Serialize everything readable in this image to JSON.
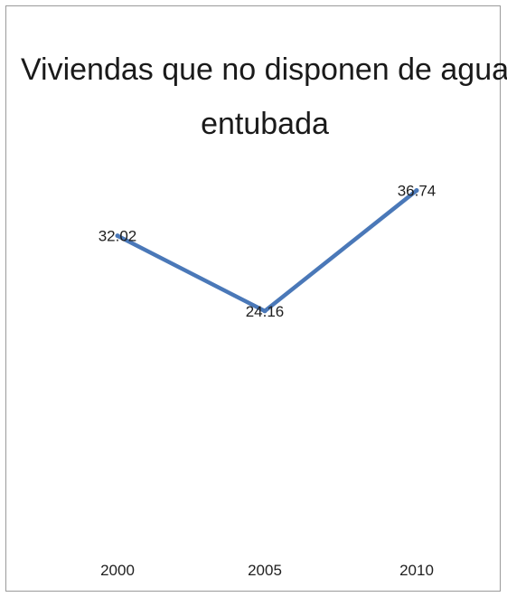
{
  "chart_data": {
    "type": "line",
    "title_lines": [
      "Viviendas que no disponen de agua",
      "entubada"
    ],
    "categories": [
      "2000",
      "2005",
      "2010"
    ],
    "series": [
      {
        "values": [
          32.02,
          24.16,
          36.74
        ],
        "data_labels": [
          "32.02",
          "24.16",
          "36.74"
        ],
        "color": "#4a78b8"
      }
    ],
    "xlabel": "",
    "ylabel": "",
    "ylim": [
      0,
      50
    ],
    "grid": false,
    "legend": "none"
  }
}
